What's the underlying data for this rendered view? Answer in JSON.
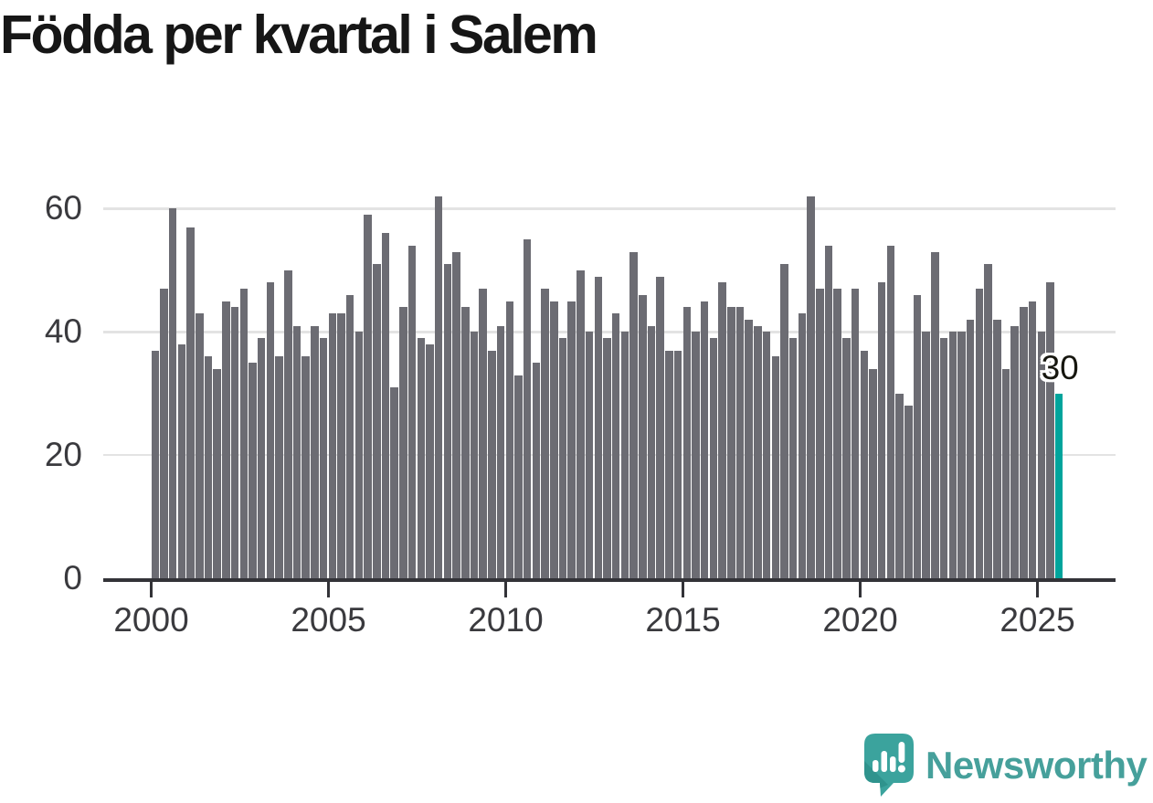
{
  "title": "Födda per kvartal i Salem",
  "chart_data": {
    "type": "bar",
    "title": "Födda per kvartal i Salem",
    "x_start": "2000 Q1",
    "x_end": "2025 Q3",
    "frequency": "quarterly",
    "xlabel": "",
    "ylabel": "",
    "ylim": [
      0,
      65
    ],
    "yticks": [
      0,
      20,
      40,
      60
    ],
    "xtick_years": [
      2000,
      2005,
      2010,
      2015,
      2020,
      2025
    ],
    "grid": "horizontal",
    "legend": "none",
    "values": [
      37,
      47,
      60,
      38,
      57,
      43,
      36,
      34,
      45,
      44,
      47,
      35,
      39,
      48,
      36,
      50,
      41,
      36,
      41,
      39,
      43,
      43,
      46,
      40,
      59,
      51,
      56,
      31,
      44,
      54,
      39,
      38,
      62,
      51,
      53,
      44,
      40,
      47,
      37,
      41,
      45,
      33,
      55,
      35,
      47,
      45,
      39,
      45,
      50,
      40,
      49,
      39,
      43,
      40,
      53,
      46,
      41,
      49,
      37,
      37,
      44,
      40,
      45,
      39,
      48,
      44,
      44,
      42,
      41,
      40,
      36,
      51,
      39,
      43,
      62,
      47,
      54,
      47,
      39,
      47,
      37,
      34,
      48,
      54,
      30,
      28,
      46,
      40,
      53,
      39,
      40,
      40,
      42,
      47,
      51,
      42,
      34,
      41,
      44,
      45,
      40,
      48,
      30
    ],
    "highlight": {
      "index": 102,
      "value": 30,
      "label": "30"
    }
  },
  "colors": {
    "bar": "#6c6c73",
    "highlight_bar": "#00a49c",
    "grid_line": "#e3e3e3",
    "axis_line": "#333338",
    "axis_label": "#3a3a3e",
    "data_label": "#16160f",
    "title": "#161616",
    "logo": "#46a09b",
    "logo_icon": "#3ba39d",
    "logo_icon_shade": "#2f938d"
  },
  "footer": {
    "logo_text": "Newsworthy",
    "logo_icon": "newsworthy-speech-bubble-chart-icon"
  }
}
